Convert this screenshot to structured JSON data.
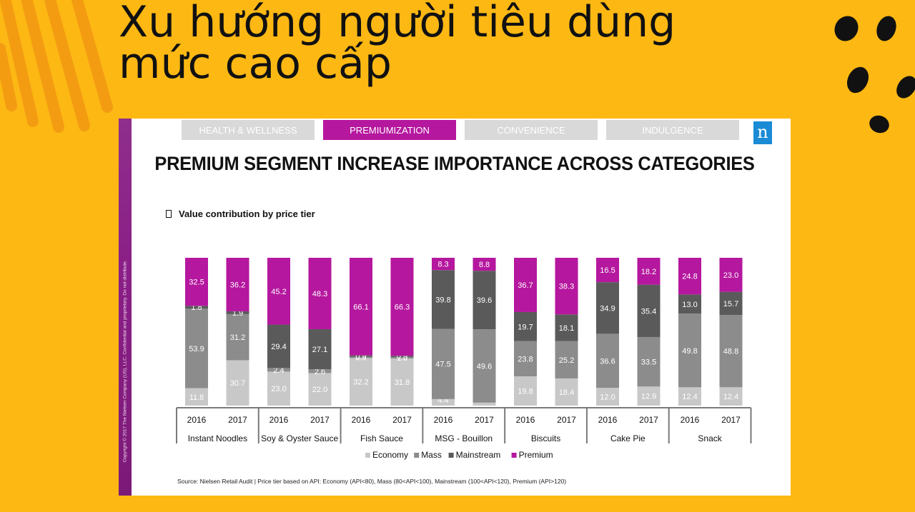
{
  "page": {
    "headline": [
      "Xu hướng người tiêu dùng",
      "mức cao cấp"
    ],
    "background": "#FDB813"
  },
  "slide": {
    "tabs": [
      {
        "label": "HEALTH & WELLNESS",
        "active": false
      },
      {
        "label": "PREMIUMIZATION",
        "active": true
      },
      {
        "label": "CONVENIENCE",
        "active": false
      },
      {
        "label": "INDULGENCE",
        "active": false
      }
    ],
    "logo": "n",
    "title": "PREMIUM SEGMENT INCREASE IMPORTANCE ACROSS CATEGORIES",
    "subtitle": "Value contribution by price tier",
    "side_text": "Copyright © 2017 The Nielsen Company (US), LLC. Confidential and proprietary. Do not distribute.",
    "source": "Source: Nielsen Retail Audit | Price tier based on API: Economy (API<80), Mass (80<API<100), Mainstream (100<API<120), Premium (API>120)"
  },
  "chart_data": {
    "type": "bar",
    "stacked": true,
    "normalized_percent": true,
    "title": "PREMIUM SEGMENT INCREASE IMPORTANCE ACROSS CATEGORIES",
    "subtitle": "Value contribution by price tier",
    "groups": [
      {
        "name": "Instant Noodles",
        "categories": [
          "2016",
          "2017"
        ]
      },
      {
        "name": "Soy & Oyster Sauce",
        "categories": [
          "2016",
          "2017"
        ]
      },
      {
        "name": "Fish Sauce",
        "categories": [
          "2016",
          "2017"
        ]
      },
      {
        "name": "MSG - Bouillon",
        "categories": [
          "2016",
          "2017"
        ]
      },
      {
        "name": "Biscuits",
        "categories": [
          "2016",
          "2017"
        ]
      },
      {
        "name": "Cake Pie",
        "categories": [
          "2016",
          "2017"
        ]
      },
      {
        "name": "Snack",
        "categories": [
          "2016",
          "2017"
        ]
      }
    ],
    "series": [
      {
        "name": "Economy",
        "color": "#c8c8c8",
        "label_color": "#ffffff",
        "values": [
          11.8,
          30.7,
          23.0,
          22.0,
          32.2,
          31.8,
          4.4,
          2.0,
          19.8,
          18.4,
          12.0,
          12.9,
          12.4,
          12.4
        ]
      },
      {
        "name": "Mass",
        "color": "#8c8c8c",
        "label_color": "#ffffff",
        "values": [
          53.9,
          31.2,
          2.4,
          2.6,
          0.9,
          1.0,
          47.5,
          49.6,
          23.8,
          25.2,
          36.6,
          33.5,
          49.8,
          48.8
        ]
      },
      {
        "name": "Mainstream",
        "color": "#5a5a5a",
        "label_color": "#ffffff",
        "values": [
          1.8,
          1.9,
          29.4,
          27.1,
          0.9,
          0.9,
          39.8,
          39.6,
          19.7,
          18.1,
          34.9,
          35.4,
          13.0,
          15.7
        ]
      },
      {
        "name": "Premium",
        "color": "#b5179e",
        "label_color": "#ffffff",
        "values": [
          32.5,
          36.2,
          45.2,
          48.3,
          66.1,
          66.3,
          8.3,
          8.8,
          36.7,
          38.3,
          16.5,
          18.2,
          24.8,
          23.0
        ]
      }
    ],
    "legend": {
      "position": "bottom-center",
      "order": [
        "Economy",
        "Mass",
        "Mainstream",
        "Premium"
      ]
    },
    "y_axis": {
      "visible": false,
      "ylim": [
        0,
        100
      ]
    },
    "grid": false
  }
}
